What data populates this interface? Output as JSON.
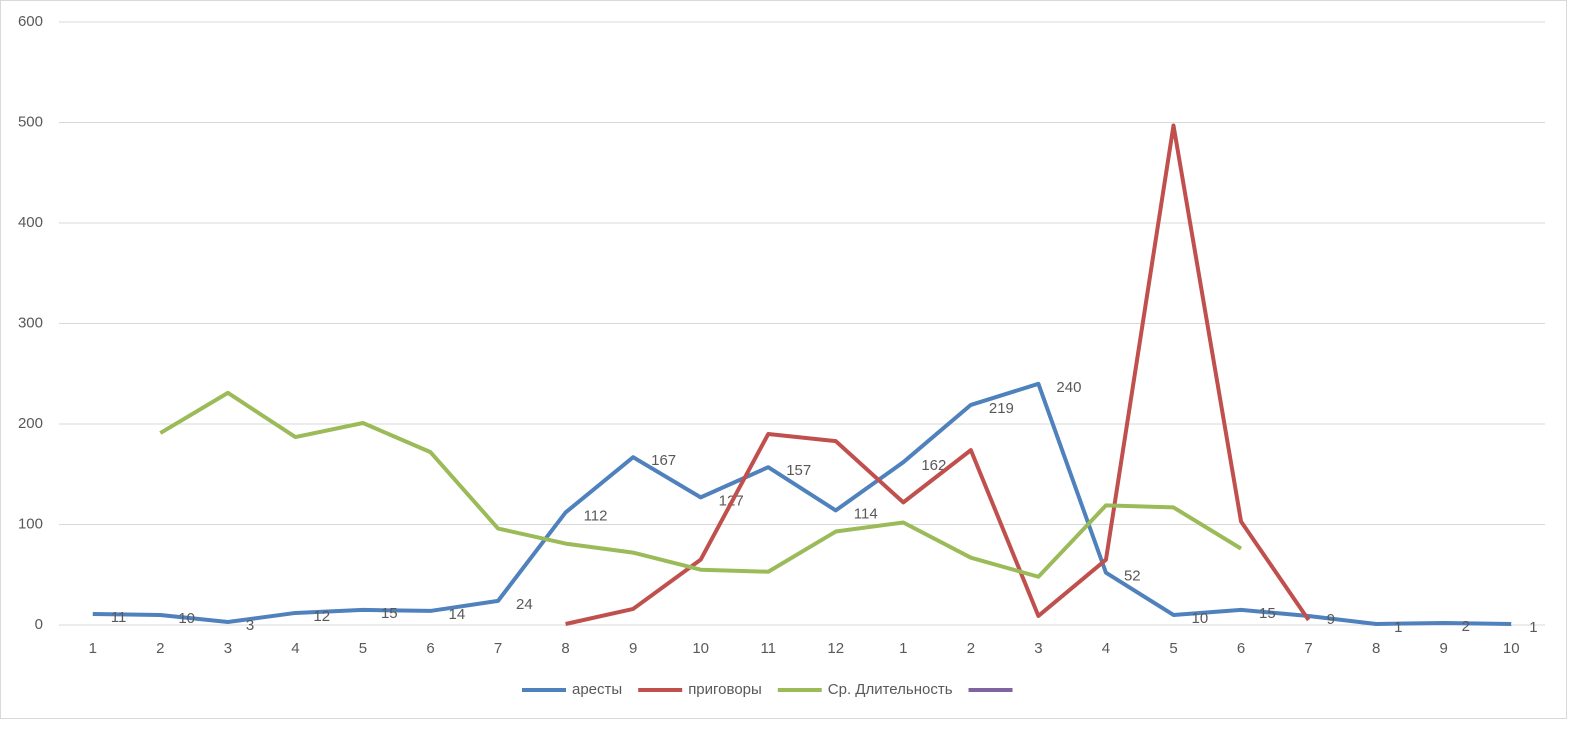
{
  "chart_data": {
    "type": "line",
    "categories": [
      "1",
      "2",
      "3",
      "4",
      "5",
      "6",
      "7",
      "8",
      "9",
      "10",
      "11",
      "12",
      "1",
      "2",
      "3",
      "4",
      "5",
      "6",
      "7",
      "8",
      "9",
      "10"
    ],
    "series": [
      {
        "name": "аресты",
        "color": "#4f81bd",
        "show_labels": true,
        "values": [
          11,
          10,
          3,
          12,
          15,
          14,
          24,
          112,
          167,
          127,
          157,
          114,
          162,
          219,
          240,
          52,
          10,
          15,
          9,
          1,
          2,
          1
        ]
      },
      {
        "name": "приговоры",
        "color": "#c0504d",
        "values": [
          null,
          null,
          null,
          null,
          null,
          null,
          null,
          1,
          16,
          65,
          190,
          183,
          122,
          174,
          9,
          65,
          497,
          103,
          5,
          null,
          null,
          null
        ]
      },
      {
        "name": "Ср. Длительность",
        "color": "#9bbb59",
        "values": [
          null,
          191,
          231,
          187,
          201,
          172,
          96,
          81,
          72,
          55,
          53,
          93,
          102,
          67,
          48,
          119,
          117,
          76,
          null,
          null,
          null,
          null
        ]
      },
      {
        "color": "#8064a2",
        "values": [
          null,
          null,
          null,
          null,
          null,
          null,
          null,
          null,
          null,
          null,
          null,
          null,
          null,
          null,
          null,
          null,
          null,
          null,
          null,
          null,
          null,
          null
        ]
      }
    ],
    "ylim": [
      0,
      600
    ],
    "yticks": [
      0,
      100,
      200,
      300,
      400,
      500,
      600
    ],
    "grid": true,
    "legend": "bottom"
  }
}
